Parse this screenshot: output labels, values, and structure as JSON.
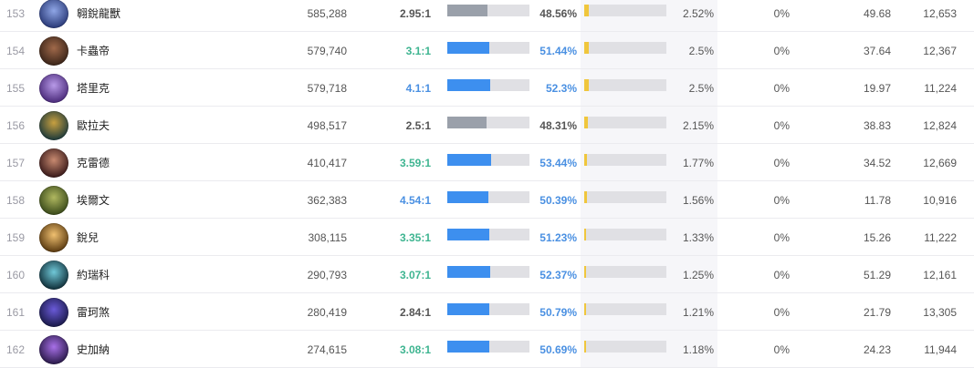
{
  "rows": [
    {
      "rank": "153",
      "name": "翱銳龍獸",
      "games": "585,288",
      "kda": "2.95:1",
      "kda_tone": "gray",
      "win_rate": "48.56%",
      "win_fraction": 0.4856,
      "win_tone": "gray",
      "pick_rate": "2.52%",
      "pick_fraction": 0.0252,
      "ban_rate": "0%",
      "stat_a": "49.68",
      "stat_b": "12,653",
      "avatar": {
        "icon": "champion-portrait",
        "colors": [
          "#2a3a78",
          "#8fa6e6"
        ]
      }
    },
    {
      "rank": "154",
      "name": "卡蟲帝",
      "games": "579,740",
      "kda": "3.1:1",
      "kda_tone": "green",
      "win_rate": "51.44%",
      "win_fraction": 0.5144,
      "win_tone": "blue",
      "pick_rate": "2.5%",
      "pick_fraction": 0.025,
      "ban_rate": "0%",
      "stat_a": "37.64",
      "stat_b": "12,367",
      "avatar": {
        "icon": "champion-portrait",
        "colors": [
          "#3a2418",
          "#a0694a"
        ]
      }
    },
    {
      "rank": "155",
      "name": "塔里克",
      "games": "579,718",
      "kda": "4.1:1",
      "kda_tone": "blue",
      "win_rate": "52.3%",
      "win_fraction": 0.523,
      "win_tone": "blue",
      "pick_rate": "2.5%",
      "pick_fraction": 0.025,
      "ban_rate": "0%",
      "stat_a": "19.97",
      "stat_b": "11,224",
      "avatar": {
        "icon": "champion-portrait",
        "colors": [
          "#4a2a7a",
          "#b89ae8"
        ]
      }
    },
    {
      "rank": "156",
      "name": "歐拉夫",
      "games": "498,517",
      "kda": "2.5:1",
      "kda_tone": "gray",
      "win_rate": "48.31%",
      "win_fraction": 0.4831,
      "win_tone": "gray",
      "pick_rate": "2.15%",
      "pick_fraction": 0.0215,
      "ban_rate": "0%",
      "stat_a": "38.83",
      "stat_b": "12,824",
      "avatar": {
        "icon": "champion-portrait",
        "colors": [
          "#1e3a3a",
          "#c8a040"
        ]
      }
    },
    {
      "rank": "157",
      "name": "克雷德",
      "games": "410,417",
      "kda": "3.59:1",
      "kda_tone": "green",
      "win_rate": "53.44%",
      "win_fraction": 0.5344,
      "win_tone": "blue",
      "pick_rate": "1.77%",
      "pick_fraction": 0.0177,
      "ban_rate": "0%",
      "stat_a": "34.52",
      "stat_b": "12,669",
      "avatar": {
        "icon": "champion-portrait",
        "colors": [
          "#3a1a1a",
          "#c88a70"
        ]
      }
    },
    {
      "rank": "158",
      "name": "埃爾文",
      "games": "362,383",
      "kda": "4.54:1",
      "kda_tone": "blue",
      "win_rate": "50.39%",
      "win_fraction": 0.5039,
      "win_tone": "blue",
      "pick_rate": "1.56%",
      "pick_fraction": 0.0156,
      "ban_rate": "0%",
      "stat_a": "11.78",
      "stat_b": "10,916",
      "avatar": {
        "icon": "champion-portrait",
        "colors": [
          "#3a4a1a",
          "#b0b860"
        ]
      }
    },
    {
      "rank": "159",
      "name": "銳兒",
      "games": "308,115",
      "kda": "3.35:1",
      "kda_tone": "green",
      "win_rate": "51.23%",
      "win_fraction": 0.5123,
      "win_tone": "blue",
      "pick_rate": "1.33%",
      "pick_fraction": 0.0133,
      "ban_rate": "0%",
      "stat_a": "15.26",
      "stat_b": "11,222",
      "avatar": {
        "icon": "champion-portrait",
        "colors": [
          "#5a3a10",
          "#f0c070"
        ]
      }
    },
    {
      "rank": "160",
      "name": "約瑞科",
      "games": "290,793",
      "kda": "3.07:1",
      "kda_tone": "green",
      "win_rate": "52.37%",
      "win_fraction": 0.5237,
      "win_tone": "blue",
      "pick_rate": "1.25%",
      "pick_fraction": 0.0125,
      "ban_rate": "0%",
      "stat_a": "51.29",
      "stat_b": "12,161",
      "avatar": {
        "icon": "champion-portrait",
        "colors": [
          "#10303a",
          "#70c8d8"
        ]
      }
    },
    {
      "rank": "161",
      "name": "雷珂煞",
      "games": "280,419",
      "kda": "2.84:1",
      "kda_tone": "gray",
      "win_rate": "50.79%",
      "win_fraction": 0.5079,
      "win_tone": "blue",
      "pick_rate": "1.21%",
      "pick_fraction": 0.0121,
      "ban_rate": "0%",
      "stat_a": "21.79",
      "stat_b": "13,305",
      "avatar": {
        "icon": "champion-portrait",
        "colors": [
          "#1a1a4a",
          "#6a5ad8"
        ]
      }
    },
    {
      "rank": "162",
      "name": "史加納",
      "games": "274,615",
      "kda": "3.08:1",
      "kda_tone": "green",
      "win_rate": "50.69%",
      "win_fraction": 0.5069,
      "win_tone": "blue",
      "pick_rate": "1.18%",
      "pick_fraction": 0.0118,
      "ban_rate": "0%",
      "stat_a": "24.23",
      "stat_b": "11,944",
      "avatar": {
        "icon": "champion-portrait",
        "colors": [
          "#2a1a4a",
          "#a870e8"
        ]
      }
    }
  ],
  "pick_bar_max_fraction": 0.5
}
